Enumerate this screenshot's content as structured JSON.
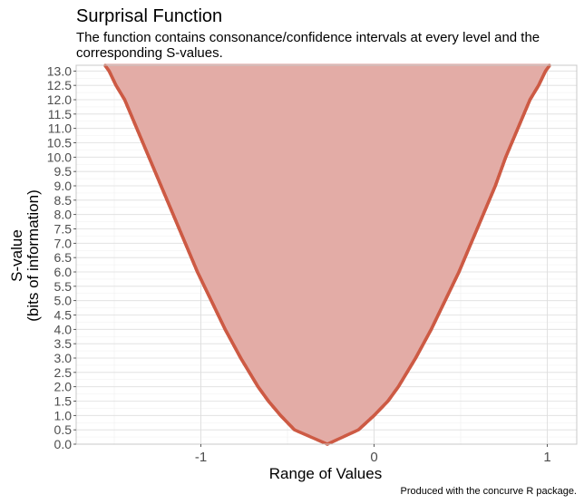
{
  "colors": {
    "fill": "#e3aca6",
    "points": "#cd5b45",
    "grid_major": "#dedede",
    "grid_minor": "#efefef",
    "panel_border": "#c8c8c8"
  },
  "chart_data": {
    "type": "area",
    "title": "Surprisal Function",
    "subtitle_lines": [
      "The function contains consonance/confidence intervals at every level and the",
      "corresponding S-values."
    ],
    "xlabel": "Range of Values",
    "ylabel_lines": [
      "S-value",
      "(bits of information)"
    ],
    "caption": "Produced with the concurve R package.",
    "xlim": [
      -1.72,
      1.17
    ],
    "ylim": [
      0,
      13.2
    ],
    "x_ticks": [
      -1,
      0,
      1
    ],
    "x_tick_labels": [
      "-1",
      "0",
      "1"
    ],
    "y_ticks": [
      0,
      0.5,
      1,
      1.5,
      2,
      2.5,
      3,
      3.5,
      4,
      4.5,
      5,
      5.5,
      6,
      6.5,
      7,
      7.5,
      8,
      8.5,
      9,
      9.5,
      10,
      10.5,
      11,
      11.5,
      12,
      12.5,
      13
    ],
    "y_tick_labels": [
      "0.0",
      "0.5",
      "1.0",
      "1.5",
      "2.0",
      "2.5",
      "3.0",
      "3.5",
      "4.0",
      "4.5",
      "5.0",
      "5.5",
      "6.0",
      "6.5",
      "7.0",
      "7.5",
      "8.0",
      "8.5",
      "9.0",
      "9.5",
      "10.0",
      "10.5",
      "11.0",
      "11.5",
      "12.0",
      "12.5",
      "13.0"
    ],
    "grid": true,
    "point_estimate": -0.27,
    "interval_levels": [
      {
        "s": 0,
        "lower": -0.27,
        "upper": -0.27
      },
      {
        "s": 0.5,
        "lower": -0.46,
        "upper": -0.09
      },
      {
        "s": 1,
        "lower": -0.54,
        "upper": 0
      },
      {
        "s": 1.5,
        "lower": -0.61,
        "upper": 0.08
      },
      {
        "s": 2,
        "lower": -0.67,
        "upper": 0.14
      },
      {
        "s": 3,
        "lower": -0.77,
        "upper": 0.24
      },
      {
        "s": 4,
        "lower": -0.86,
        "upper": 0.33
      },
      {
        "s": 5,
        "lower": -0.94,
        "upper": 0.41
      },
      {
        "s": 6,
        "lower": -1.02,
        "upper": 0.49
      },
      {
        "s": 7,
        "lower": -1.09,
        "upper": 0.56
      },
      {
        "s": 8,
        "lower": -1.16,
        "upper": 0.63
      },
      {
        "s": 9,
        "lower": -1.23,
        "upper": 0.7
      },
      {
        "s": 10,
        "lower": -1.3,
        "upper": 0.76
      },
      {
        "s": 11,
        "lower": -1.37,
        "upper": 0.83
      },
      {
        "s": 12,
        "lower": -1.44,
        "upper": 0.9
      },
      {
        "s": 12.5,
        "lower": -1.49,
        "upper": 0.95
      },
      {
        "s": 13,
        "lower": -1.53,
        "upper": 0.99
      },
      {
        "s": 13.25,
        "lower": -1.56,
        "upper": 1.02
      }
    ]
  }
}
